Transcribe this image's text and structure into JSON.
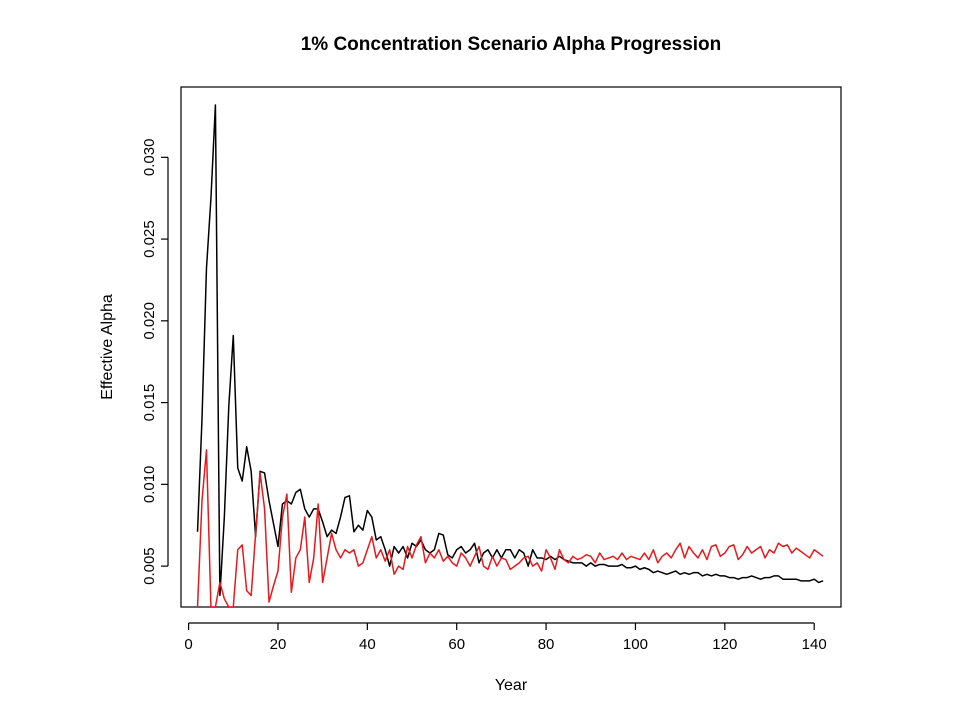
{
  "chart_data": {
    "type": "line",
    "title": "1% Concentration Scenario Alpha Progression",
    "xlabel": "Year",
    "ylabel": "Effective Alpha",
    "xlim": [
      -1.7,
      146
    ],
    "ylim": [
      0.0025,
      0.0343
    ],
    "xticks": [
      0,
      20,
      40,
      60,
      80,
      100,
      120,
      140
    ],
    "xtick_labels": [
      "0",
      "20",
      "40",
      "60",
      "80",
      "100",
      "120",
      "140"
    ],
    "yticks": [
      0.005,
      0.01,
      0.015,
      0.02,
      0.025,
      0.03
    ],
    "ytick_labels": [
      "0.005",
      "0.010",
      "0.015",
      "0.020",
      "0.025",
      "0.030"
    ],
    "grid": false,
    "legend": "none",
    "series": [
      {
        "color": "#000000",
        "x_start": 2,
        "values": [
          0.0071,
          0.014,
          0.0232,
          0.0275,
          0.0332,
          0.0032,
          0.008,
          0.0148,
          0.0191,
          0.011,
          0.0102,
          0.0123,
          0.0108,
          0.0068,
          0.0108,
          0.0107,
          0.009,
          0.0076,
          0.0062,
          0.0088,
          0.009,
          0.0088,
          0.0095,
          0.0097,
          0.0085,
          0.008,
          0.0085,
          0.0085,
          0.0077,
          0.0068,
          0.0072,
          0.007,
          0.008,
          0.0092,
          0.0093,
          0.0071,
          0.0075,
          0.0072,
          0.0084,
          0.008,
          0.0066,
          0.0068,
          0.006,
          0.005,
          0.0062,
          0.0058,
          0.0062,
          0.0055,
          0.0064,
          0.0062,
          0.0066,
          0.006,
          0.0058,
          0.006,
          0.007,
          0.0069,
          0.0057,
          0.0055,
          0.006,
          0.0062,
          0.0058,
          0.006,
          0.0064,
          0.0052,
          0.0058,
          0.006,
          0.0055,
          0.006,
          0.0055,
          0.006,
          0.006,
          0.0055,
          0.006,
          0.0058,
          0.005,
          0.006,
          0.0055,
          0.0055,
          0.0054,
          0.0056,
          0.0054,
          0.0056,
          0.0054,
          0.0053,
          0.0052,
          0.0052,
          0.0052,
          0.005,
          0.0052,
          0.005,
          0.0051,
          0.0051,
          0.005,
          0.005,
          0.005,
          0.0051,
          0.0049,
          0.0049,
          0.005,
          0.0048,
          0.0049,
          0.0048,
          0.0046,
          0.0047,
          0.0046,
          0.0045,
          0.0046,
          0.0047,
          0.0045,
          0.0046,
          0.0045,
          0.0046,
          0.0046,
          0.0044,
          0.0045,
          0.0044,
          0.0045,
          0.0044,
          0.0044,
          0.0043,
          0.0043,
          0.0042,
          0.0043,
          0.0043,
          0.0044,
          0.0043,
          0.0042,
          0.0043,
          0.0043,
          0.0044,
          0.0044,
          0.0042,
          0.0042,
          0.0042,
          0.0042,
          0.0041,
          0.0041,
          0.0041,
          0.0042,
          0.004,
          0.0041
        ]
      },
      {
        "color": "#e8191c",
        "x_start": 2,
        "values": [
          0.0025,
          0.009,
          0.0121,
          0.0025,
          0.0025,
          0.004,
          0.003,
          0.0025,
          0.0025,
          0.006,
          0.0063,
          0.0035,
          0.0032,
          0.007,
          0.0107,
          0.0085,
          0.0028,
          0.0038,
          0.0047,
          0.008,
          0.0094,
          0.0034,
          0.0055,
          0.006,
          0.008,
          0.004,
          0.0055,
          0.0088,
          0.004,
          0.0055,
          0.007,
          0.006,
          0.0055,
          0.006,
          0.0058,
          0.006,
          0.005,
          0.0052,
          0.006,
          0.0068,
          0.0055,
          0.006,
          0.0053,
          0.006,
          0.0045,
          0.005,
          0.0048,
          0.0062,
          0.0055,
          0.0063,
          0.0068,
          0.0052,
          0.0058,
          0.0055,
          0.006,
          0.0053,
          0.0056,
          0.0052,
          0.005,
          0.0058,
          0.0055,
          0.005,
          0.0056,
          0.0062,
          0.005,
          0.0048,
          0.0056,
          0.005,
          0.0055,
          0.0054,
          0.0048,
          0.005,
          0.0052,
          0.0055,
          0.0056,
          0.005,
          0.0052,
          0.0047,
          0.006,
          0.0055,
          0.0048,
          0.006,
          0.0054,
          0.0052,
          0.0056,
          0.0054,
          0.0055,
          0.0057,
          0.0056,
          0.0052,
          0.0058,
          0.0054,
          0.0055,
          0.0056,
          0.0054,
          0.0058,
          0.0054,
          0.0056,
          0.0055,
          0.0054,
          0.0058,
          0.0054,
          0.006,
          0.0052,
          0.0056,
          0.0058,
          0.0055,
          0.006,
          0.0064,
          0.0055,
          0.0062,
          0.0058,
          0.0055,
          0.006,
          0.0054,
          0.0062,
          0.0063,
          0.0056,
          0.0058,
          0.0062,
          0.0063,
          0.0054,
          0.0057,
          0.0062,
          0.0058,
          0.006,
          0.0062,
          0.0055,
          0.006,
          0.0058,
          0.0064,
          0.0062,
          0.0063,
          0.0058,
          0.0061,
          0.0059,
          0.0057,
          0.0055,
          0.006,
          0.0058,
          0.0056
        ]
      }
    ]
  }
}
